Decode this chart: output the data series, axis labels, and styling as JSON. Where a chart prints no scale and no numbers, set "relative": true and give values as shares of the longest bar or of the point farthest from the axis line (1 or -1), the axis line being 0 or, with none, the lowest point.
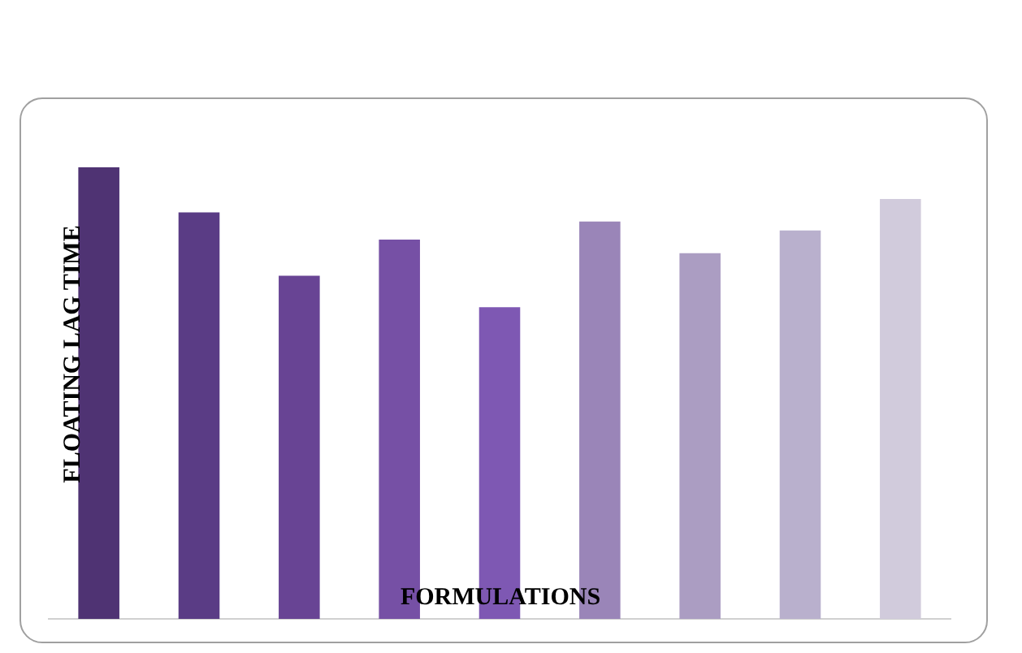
{
  "chart_data": {
    "type": "bar",
    "relative": true,
    "xlabel": "FORMULATIONS",
    "ylabel": "FLOATING LAG TIME",
    "categories": [
      null,
      null,
      null,
      null,
      null,
      null,
      null,
      null,
      null
    ],
    "values": [
      1,
      0.9,
      0.76,
      0.84,
      0.69,
      0.88,
      0.81,
      0.86,
      0.93
    ],
    "colors": [
      "#4f3373",
      "#5a3c85",
      "#684494",
      "#7650a5",
      "#7e58b3",
      "#9a85b8",
      "#ab9dc2",
      "#b9b0cd",
      "#d1cbdc"
    ],
    "legend": false
  }
}
